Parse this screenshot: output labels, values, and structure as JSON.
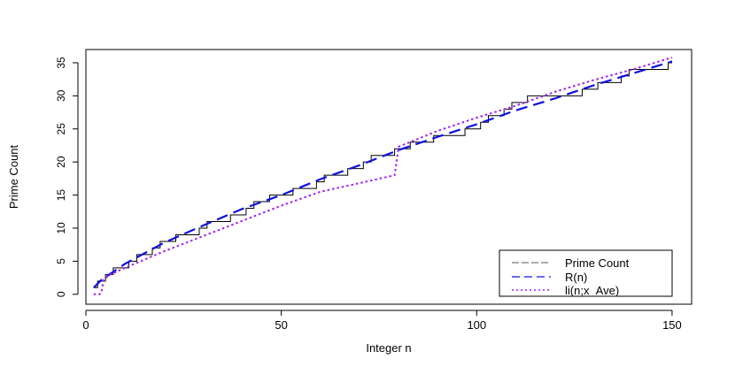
{
  "chart_data": {
    "type": "line",
    "xlabel": "Integer n",
    "ylabel": "Prime Count",
    "xlim": [
      0,
      155
    ],
    "ylim": [
      -1.5,
      37
    ],
    "x_ticks": [
      0,
      50,
      100,
      150
    ],
    "y_ticks": [
      0,
      5,
      10,
      15,
      20,
      25,
      30,
      35
    ],
    "grid": false,
    "legend_position": "bottom-right",
    "series": [
      {
        "name": "Prime Count",
        "style": "step",
        "color": "#000000",
        "x": [
          2,
          3,
          5,
          7,
          11,
          13,
          17,
          19,
          23,
          29,
          31,
          37,
          41,
          43,
          47,
          53,
          59,
          61,
          67,
          71,
          73,
          79,
          83,
          89,
          97,
          101,
          103,
          107,
          109,
          113,
          127,
          131,
          137,
          139,
          149,
          150
        ],
        "y": [
          1,
          2,
          3,
          4,
          5,
          6,
          7,
          8,
          9,
          10,
          11,
          12,
          13,
          14,
          15,
          16,
          17,
          18,
          19,
          20,
          21,
          22,
          23,
          24,
          25,
          26,
          27,
          28,
          29,
          30,
          31,
          32,
          33,
          34,
          35,
          35
        ]
      },
      {
        "name": "R(n)",
        "style": "dashed",
        "color": "#1010e0",
        "x": [
          2,
          3,
          4,
          6,
          10,
          15,
          20,
          30,
          40,
          50,
          60,
          70,
          80,
          90,
          100,
          110,
          120,
          130,
          140,
          150
        ],
        "y": [
          1.0,
          1.6,
          2.2,
          3.0,
          4.6,
          6.2,
          7.8,
          10.4,
          12.9,
          15.0,
          17.4,
          19.5,
          21.8,
          23.8,
          25.7,
          27.8,
          29.6,
          31.6,
          33.4,
          35.2
        ]
      },
      {
        "name": "li(n;x_Ave)",
        "style": "dotted",
        "color": "#a020f0",
        "x": [
          2,
          3.5,
          4,
          4.5,
          6,
          10,
          20,
          30,
          40,
          50,
          60,
          70,
          79,
          79.5,
          80,
          85,
          90,
          100,
          110,
          120,
          130,
          140,
          150
        ],
        "y": [
          0,
          0,
          0.3,
          2.2,
          2.9,
          4.0,
          6.5,
          8.8,
          11.1,
          13.4,
          15.5,
          16.8,
          18.0,
          20.0,
          22.3,
          23.5,
          24.7,
          26.7,
          28.5,
          30.6,
          32.4,
          34.0,
          35.8
        ]
      }
    ]
  }
}
